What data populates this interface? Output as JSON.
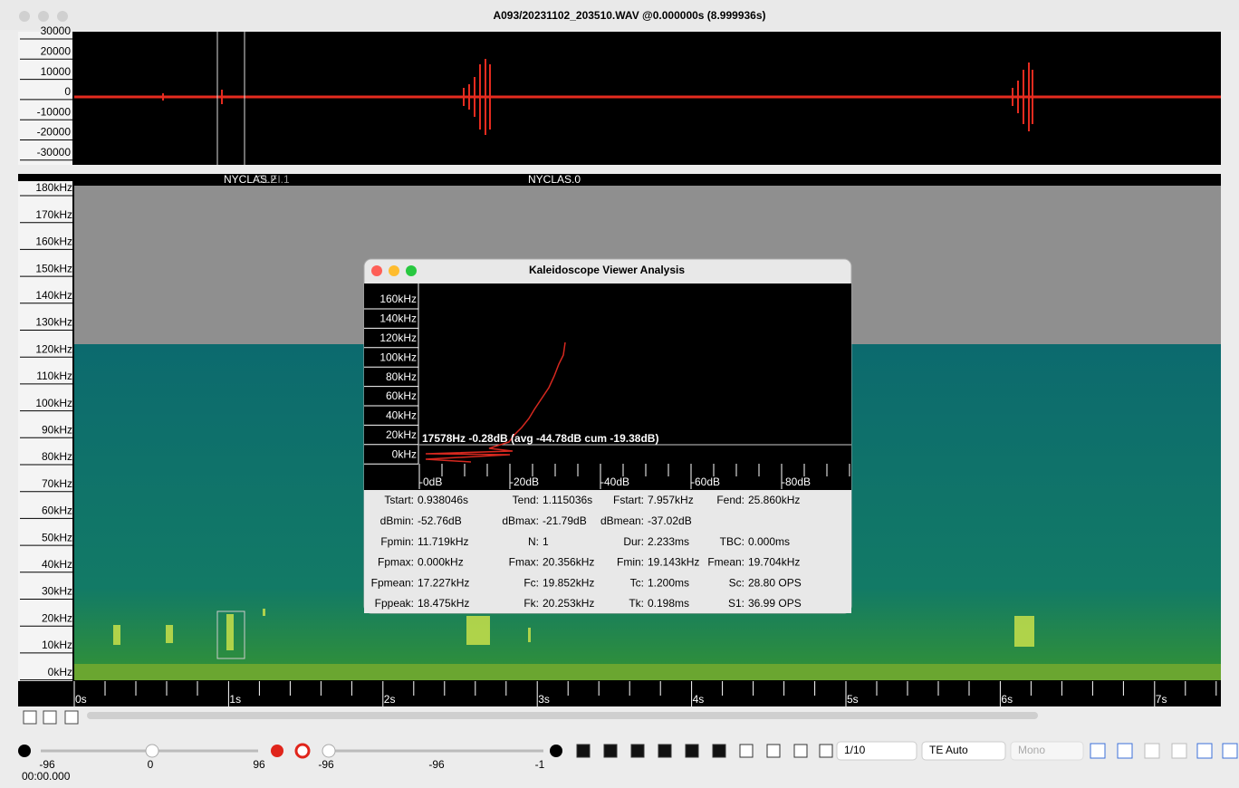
{
  "window": {
    "title": "A093/20231102_203510.WAV @0.000000s (8.999936s)"
  },
  "waveform": {
    "yticks": [
      "30000",
      "20000",
      "10000",
      "0",
      "-10000",
      "-20000",
      "-30000"
    ]
  },
  "spectrogram": {
    "labels": [
      "NYCLAS.2",
      "CLEI.1",
      "NYCLAS.0"
    ],
    "yticks": [
      "180kHz",
      "170kHz",
      "160kHz",
      "150kHz",
      "140kHz",
      "130kHz",
      "120kHz",
      "110kHz",
      "100kHz",
      "90kHz",
      "80kHz",
      "70kHz",
      "60kHz",
      "50kHz",
      "40kHz",
      "30kHz",
      "20kHz",
      "10kHz",
      "0kHz"
    ],
    "xticks": [
      "0s",
      "1s",
      "2s",
      "3s",
      "4s",
      "5s",
      "6s",
      "7s"
    ]
  },
  "analysis": {
    "title": "Kaleidoscope Viewer Analysis",
    "yticks": [
      "160kHz",
      "140kHz",
      "120kHz",
      "100kHz",
      "80kHz",
      "60kHz",
      "40kHz",
      "20kHz",
      "0kHz"
    ],
    "xticks": [
      "-0dB",
      "-20dB",
      "-40dB",
      "-60dB",
      "-80dB"
    ],
    "readout": "17578Hz -0.28dB (avg -44.78dB cum -19.38dB)",
    "stats": [
      [
        [
          "Tstart:",
          "0.938046s"
        ],
        [
          "Tend:",
          "1.115036s"
        ],
        [
          "Fstart:",
          "7.957kHz"
        ],
        [
          "Fend:",
          "25.860kHz"
        ]
      ],
      [
        [
          "dBmin:",
          "-52.76dB"
        ],
        [
          "dBmax:",
          "-21.79dB"
        ],
        [
          "dBmean:",
          "-37.02dB"
        ]
      ],
      [
        [
          "Fpmin:",
          "11.719kHz"
        ],
        [
          "N:",
          "1"
        ],
        [
          "Dur:",
          "2.233ms"
        ],
        [
          "TBC:",
          "0.000ms"
        ]
      ],
      [
        [
          "Fpmax:",
          "0.000kHz"
        ],
        [
          "Fmax:",
          "20.356kHz"
        ],
        [
          "Fmin:",
          "19.143kHz"
        ],
        [
          "Fmean:",
          "19.704kHz"
        ]
      ],
      [
        [
          "Fpmean:",
          "17.227kHz"
        ],
        [
          "Fc:",
          "19.852kHz"
        ],
        [
          "Tc:",
          "1.200ms"
        ],
        [
          "Sc:",
          "28.80 OPS"
        ]
      ],
      [
        [
          "Fppeak:",
          "18.475kHz"
        ],
        [
          "Fk:",
          "20.253kHz"
        ],
        [
          "Tk:",
          "0.198ms"
        ],
        [
          "S1:",
          "36.99 OPS"
        ]
      ]
    ]
  },
  "toolbar": {
    "slider_labels": [
      "-96",
      "0",
      "96",
      "-96",
      "-96",
      "-1"
    ],
    "page": "1/10",
    "mode": "TE Auto",
    "channel": "Mono",
    "time": "00:00.000"
  }
}
